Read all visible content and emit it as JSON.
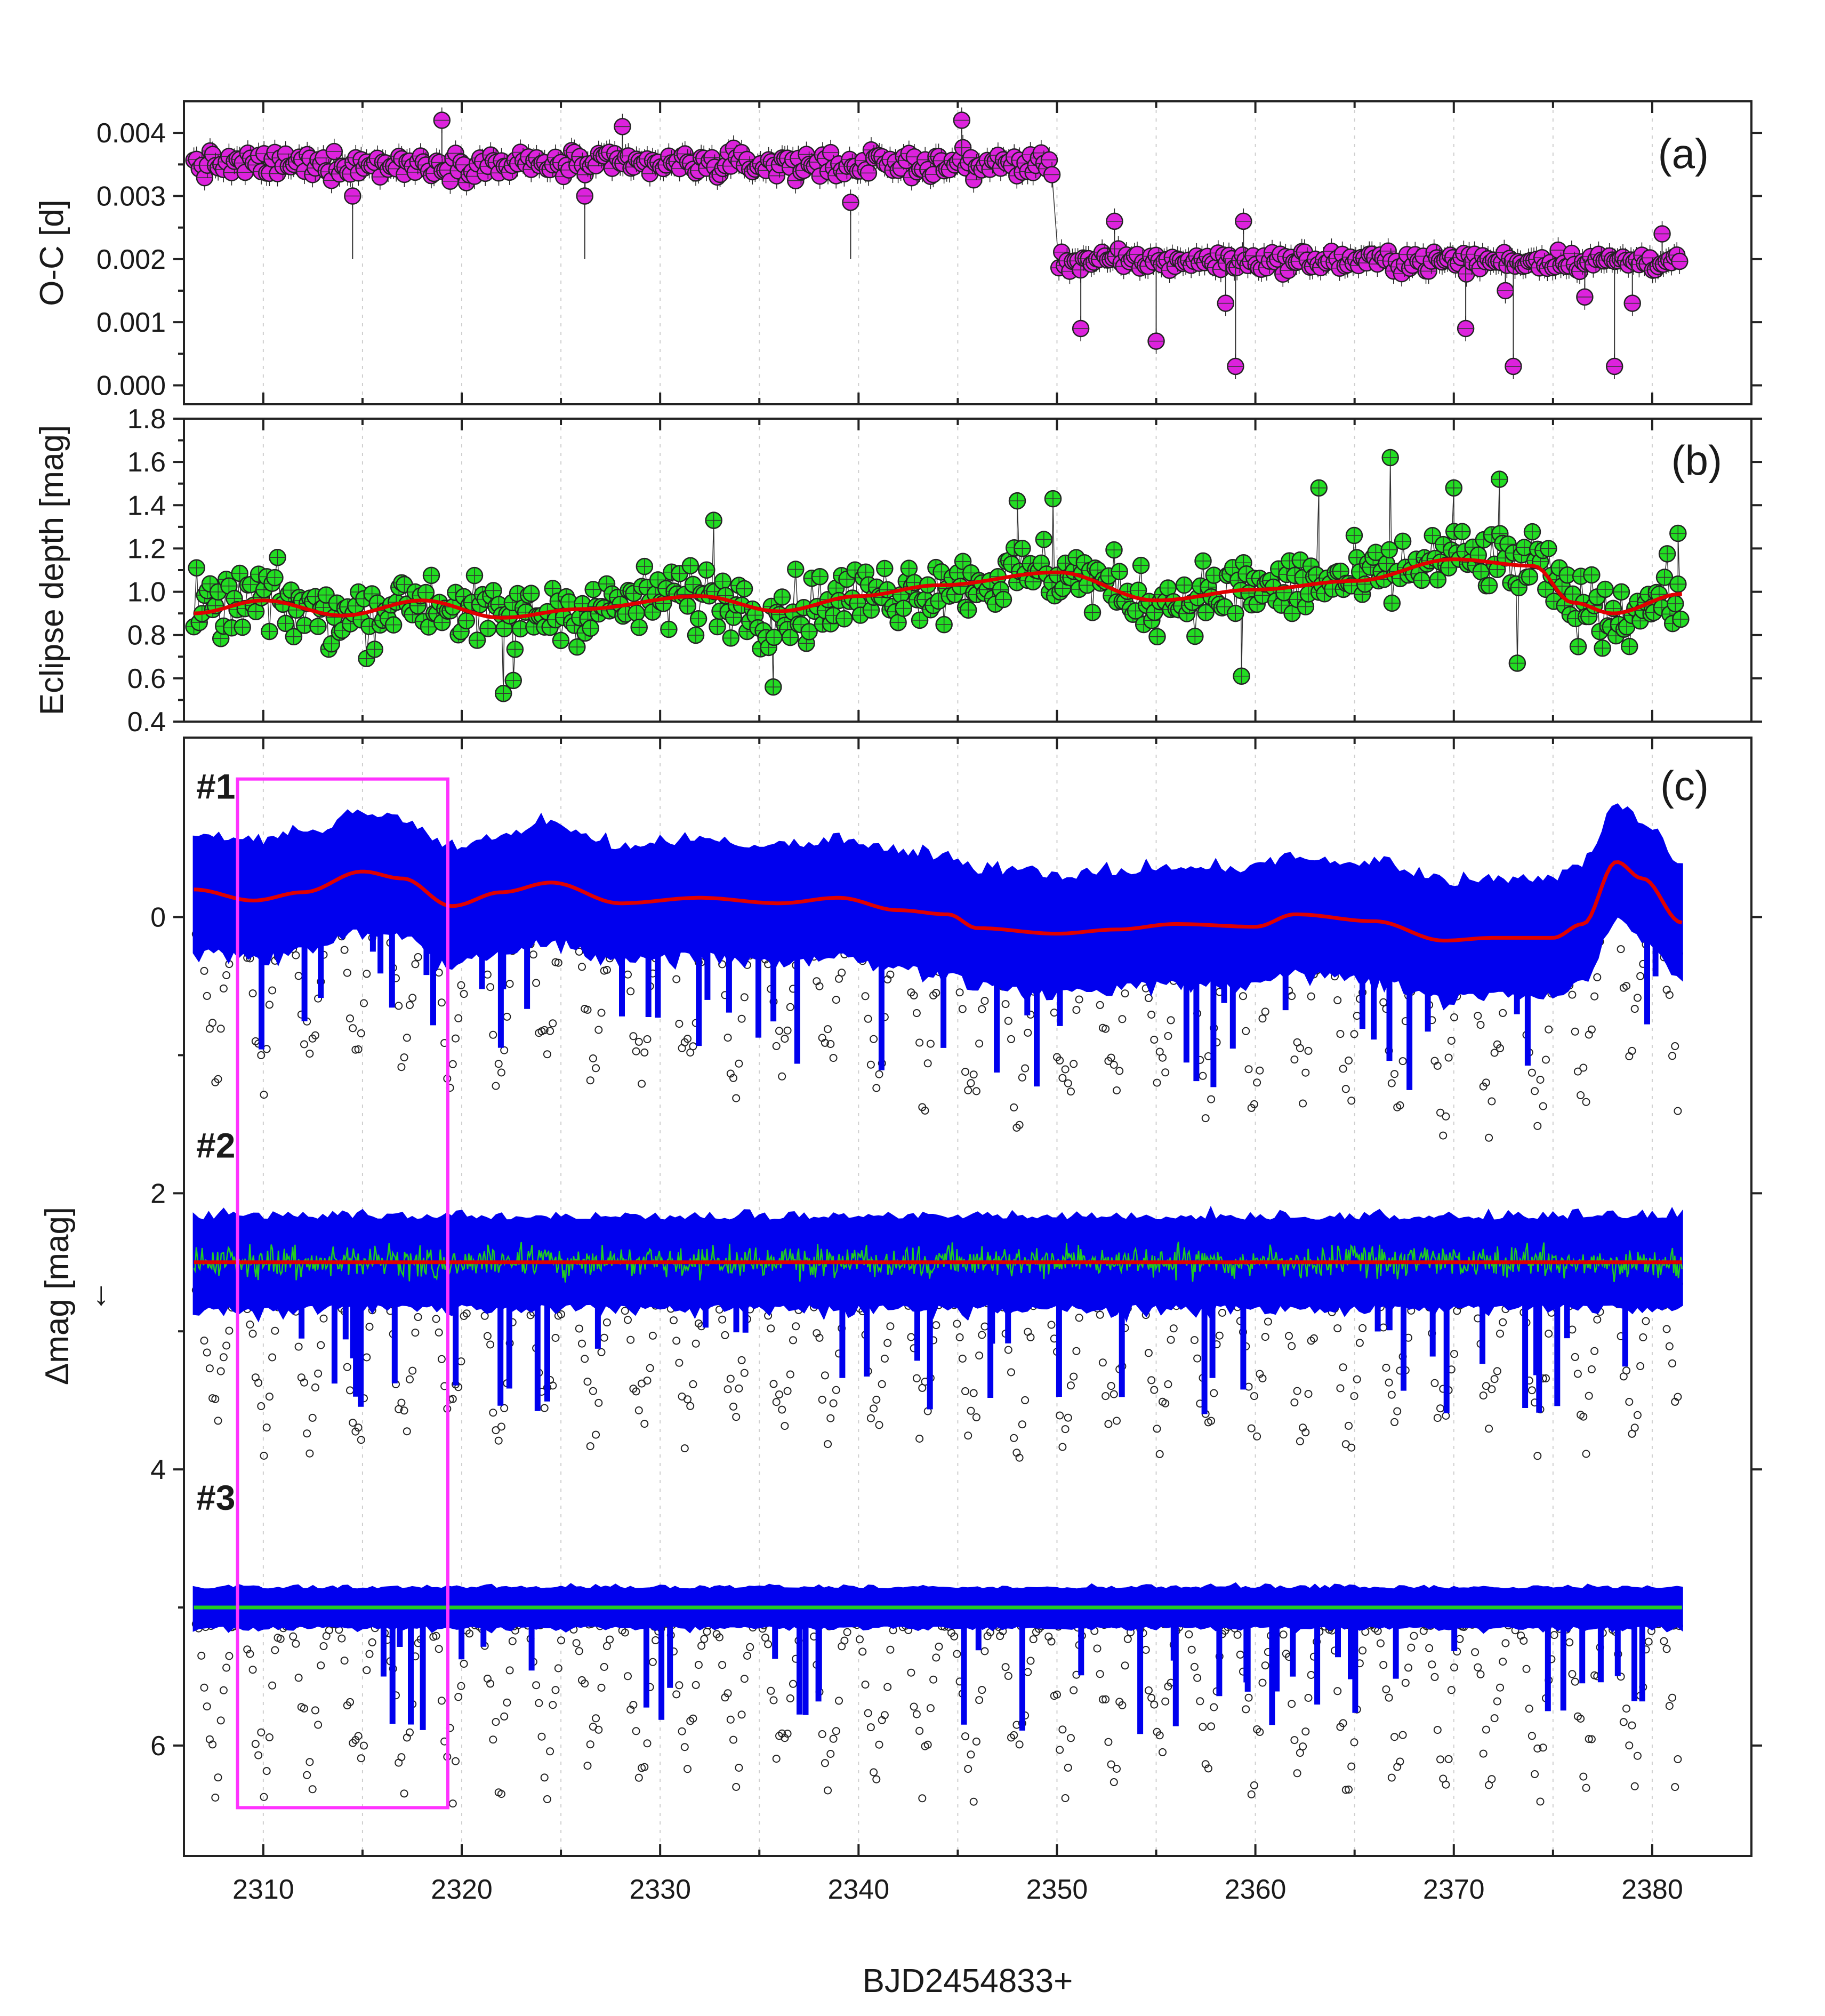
{
  "figure": {
    "xlabel": "BJD2454833+",
    "xticks": [
      "2310",
      "2320",
      "2330",
      "2340",
      "2350",
      "2360",
      "2370",
      "2380"
    ],
    "xlim": [
      2306,
      2385
    ],
    "highlight_box_color": "#ff33ff"
  },
  "chart_data": [
    {
      "type": "scatter",
      "panel": "(a)",
      "ylabel": "O-C [d]",
      "ylim": [
        -0.0003,
        0.0045
      ],
      "yticks": [
        "0.000",
        "0.001",
        "0.002",
        "0.003",
        "0.004"
      ],
      "ytick_values": [
        0.0,
        0.001,
        0.002,
        0.003,
        0.004
      ],
      "marker_color": "#dd22dd",
      "series": [
        {
          "segments": [
            {
              "x_start": 2306.5,
              "x_end": 2349.8,
              "mean": 0.0035,
              "spread": 0.00028
            },
            {
              "x_start": 2350.1,
              "x_end": 2381.5,
              "mean": 0.00197,
              "spread": 0.00022
            }
          ],
          "cadence_days": 0.136,
          "outliers": [
            {
              "x": 2314.5,
              "y": 0.003
            },
            {
              "x": 2319.0,
              "y": 0.0042
            },
            {
              "x": 2326.2,
              "y": 0.003
            },
            {
              "x": 2328.1,
              "y": 0.0041
            },
            {
              "x": 2339.6,
              "y": 0.0029
            },
            {
              "x": 2345.2,
              "y": 0.0042
            },
            {
              "x": 2351.2,
              "y": 0.0009
            },
            {
              "x": 2352.9,
              "y": 0.0026
            },
            {
              "x": 2355.0,
              "y": 0.0007
            },
            {
              "x": 2358.5,
              "y": 0.0013
            },
            {
              "x": 2359.0,
              "y": 0.0003
            },
            {
              "x": 2359.4,
              "y": 0.0026
            },
            {
              "x": 2370.6,
              "y": 0.0009
            },
            {
              "x": 2372.6,
              "y": 0.0015
            },
            {
              "x": 2373.0,
              "y": 0.0003
            },
            {
              "x": 2376.6,
              "y": 0.0014
            },
            {
              "x": 2378.1,
              "y": 0.0003
            },
            {
              "x": 2379.0,
              "y": 0.0013
            },
            {
              "x": 2380.5,
              "y": 0.0024
            }
          ]
        }
      ]
    },
    {
      "type": "scatter",
      "panel": "(b)",
      "ylabel": "Eclipse depth [mag]",
      "ylim": [
        0.4,
        1.8
      ],
      "yticks": [
        "0.4",
        "0.6",
        "0.8",
        "1.0",
        "1.2",
        "1.4",
        "1.6",
        "1.8"
      ],
      "ytick_values": [
        0.4,
        0.6,
        0.8,
        1.0,
        1.2,
        1.4,
        1.6,
        1.8
      ],
      "marker_color": "#22dd22",
      "trend_color": "#e00000",
      "series": [
        {
          "trend": [
            [
              2306.5,
              0.9
            ],
            [
              2310,
              0.96
            ],
            [
              2314,
              0.89
            ],
            [
              2318,
              0.96
            ],
            [
              2322,
              0.88
            ],
            [
              2326,
              0.92
            ],
            [
              2332,
              0.98
            ],
            [
              2336,
              0.91
            ],
            [
              2340,
              0.98
            ],
            [
              2344,
              1.03
            ],
            [
              2350,
              1.09
            ],
            [
              2355,
              0.96
            ],
            [
              2360,
              1.01
            ],
            [
              2365,
              1.05
            ],
            [
              2370,
              1.15
            ],
            [
              2374,
              1.12
            ],
            [
              2376,
              0.95
            ],
            [
              2378,
              0.9
            ],
            [
              2381.5,
              0.99
            ]
          ],
          "scatter_spread": 0.16,
          "cadence_days": 0.136,
          "outliers": [
            {
              "x": 2322.1,
              "y": 0.53
            },
            {
              "x": 2322.6,
              "y": 0.59
            },
            {
              "x": 2332.7,
              "y": 1.33
            },
            {
              "x": 2335.7,
              "y": 0.56
            },
            {
              "x": 2348.0,
              "y": 1.42
            },
            {
              "x": 2349.8,
              "y": 1.43
            },
            {
              "x": 2359.3,
              "y": 0.61
            },
            {
              "x": 2363.2,
              "y": 1.48
            },
            {
              "x": 2366.8,
              "y": 1.62
            },
            {
              "x": 2370.0,
              "y": 1.48
            },
            {
              "x": 2372.3,
              "y": 1.52
            },
            {
              "x": 2373.2,
              "y": 0.67
            },
            {
              "x": 2380.0,
              "y": 0.93
            },
            {
              "x": 2381.3,
              "y": 1.27
            }
          ]
        }
      ]
    },
    {
      "type": "scatter",
      "panel": "(c)",
      "ylabel": "Δmag [mag]",
      "ylabel_arrow": "←",
      "ylim": [
        6.8,
        -1.3
      ],
      "yticks": [
        "0",
        "2",
        "4",
        "6"
      ],
      "ytick_values": [
        0,
        2,
        4,
        6
      ],
      "highlight_box": {
        "x_start": 2308.7,
        "x_end": 2319.3,
        "y_top": -1.0,
        "y_bottom": 6.45
      },
      "series": [
        {
          "name": "#1",
          "label_y": -0.95,
          "points_color": "#0000ee",
          "raw_color": "#222222",
          "fit_color": "#e00000",
          "baseline": [
            [
              2306.5,
              -0.2
            ],
            [
              2309.5,
              -0.12
            ],
            [
              2312,
              -0.18
            ],
            [
              2315,
              -0.33
            ],
            [
              2317,
              -0.28
            ],
            [
              2319.5,
              -0.08
            ],
            [
              2322,
              -0.18
            ],
            [
              2324.5,
              -0.25
            ],
            [
              2328,
              -0.1
            ],
            [
              2332,
              -0.14
            ],
            [
              2336,
              -0.1
            ],
            [
              2339,
              -0.14
            ],
            [
              2342,
              -0.05
            ],
            [
              2344.5,
              -0.02
            ],
            [
              2346,
              0.08
            ],
            [
              2350,
              0.12
            ],
            [
              2353,
              0.09
            ],
            [
              2356,
              0.05
            ],
            [
              2360,
              0.07
            ],
            [
              2362,
              -0.02
            ],
            [
              2366,
              0.03
            ],
            [
              2369.5,
              0.17
            ],
            [
              2372,
              0.15
            ],
            [
              2375,
              0.15
            ],
            [
              2376.5,
              0.05
            ],
            [
              2378.2,
              -0.4
            ],
            [
              2379.5,
              -0.28
            ],
            [
              2381.5,
              0.04
            ]
          ],
          "band_half_width": 0.38,
          "raw_depth": 0.95
        },
        {
          "name": "#2",
          "label_y": 1.65,
          "points_color": "#0000ee",
          "raw_color": "#222222",
          "fit_color": "#e00000",
          "residual_color": "#22cc22",
          "baseline": [
            [
              2306.5,
              2.5
            ],
            [
              2381.5,
              2.5
            ]
          ],
          "band_half_width": 0.3,
          "raw_depth": 0.95
        },
        {
          "name": "#3",
          "label_y": 4.2,
          "points_color": "#0000ee",
          "raw_color": "#222222",
          "fit_color": "#22cc22",
          "baseline": [
            [
              2306.5,
              5.0
            ],
            [
              2381.5,
              5.0
            ]
          ],
          "band_half_width": 0.13,
          "raw_depth": 1.05
        }
      ]
    }
  ]
}
